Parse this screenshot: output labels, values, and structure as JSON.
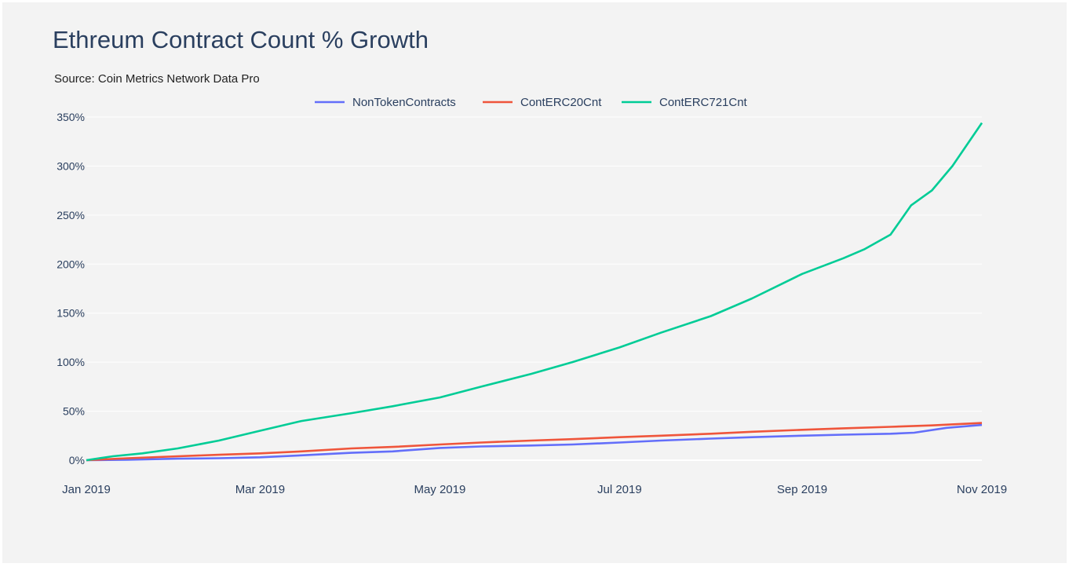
{
  "title": "Ethreum Contract Count % Growth",
  "subtitle": "Source: Coin Metrics Network Data Pro",
  "colors": {
    "background": "#f3f3f3",
    "grid": "#ffffff",
    "axis_text": "#2a3f5f",
    "NonTokenContracts": "#636efa",
    "ContERC20Cnt": "#ef553b",
    "ContERC721Cnt": "#00cc96"
  },
  "chart_data": {
    "type": "line",
    "title": "Ethreum Contract Count % Growth",
    "subtitle": "Source: Coin Metrics Network Data Pro",
    "xlabel": "",
    "ylabel": "",
    "x_ticks": [
      "2019-01-01",
      "2019-03-01",
      "2019-05-01",
      "2019-07-01",
      "2019-09-01",
      "2019-11-01"
    ],
    "x_tick_labels": [
      "Jan 2019",
      "Mar 2019",
      "May 2019",
      "Jul 2019",
      "Sep 2019",
      "Nov 2019"
    ],
    "xlim": [
      "2019-01-01",
      "2019-11-01"
    ],
    "y_ticks": [
      0,
      50,
      100,
      150,
      200,
      250,
      300,
      350
    ],
    "y_tick_labels": [
      "0%",
      "50%",
      "100%",
      "150%",
      "200%",
      "250%",
      "300%",
      "350%"
    ],
    "ylim": [
      0,
      350
    ],
    "grid": true,
    "legend_position": "top-center",
    "series": [
      {
        "name": "NonTokenContracts",
        "points": [
          [
            "2019-01-01",
            0
          ],
          [
            "2019-01-15",
            0.5
          ],
          [
            "2019-02-01",
            1.5
          ],
          [
            "2019-02-15",
            2
          ],
          [
            "2019-03-01",
            3
          ],
          [
            "2019-03-15",
            5
          ],
          [
            "2019-04-01",
            7.5
          ],
          [
            "2019-04-15",
            9
          ],
          [
            "2019-05-01",
            12.5
          ],
          [
            "2019-05-15",
            14
          ],
          [
            "2019-06-01",
            15
          ],
          [
            "2019-06-15",
            16
          ],
          [
            "2019-07-01",
            18
          ],
          [
            "2019-07-15",
            20
          ],
          [
            "2019-08-01",
            22
          ],
          [
            "2019-08-15",
            23.5
          ],
          [
            "2019-09-01",
            25
          ],
          [
            "2019-09-15",
            26
          ],
          [
            "2019-10-01",
            27
          ],
          [
            "2019-10-09",
            28
          ],
          [
            "2019-10-20",
            33
          ],
          [
            "2019-11-01",
            36
          ]
        ]
      },
      {
        "name": "ContERC20Cnt",
        "points": [
          [
            "2019-01-01",
            0
          ],
          [
            "2019-01-15",
            2
          ],
          [
            "2019-02-01",
            4
          ],
          [
            "2019-02-15",
            5.5
          ],
          [
            "2019-03-01",
            7
          ],
          [
            "2019-03-15",
            9
          ],
          [
            "2019-04-01",
            12
          ],
          [
            "2019-04-15",
            13.5
          ],
          [
            "2019-05-01",
            16
          ],
          [
            "2019-05-15",
            18
          ],
          [
            "2019-06-01",
            20
          ],
          [
            "2019-06-15",
            21.5
          ],
          [
            "2019-07-01",
            23.5
          ],
          [
            "2019-07-15",
            25
          ],
          [
            "2019-08-01",
            27
          ],
          [
            "2019-08-15",
            29
          ],
          [
            "2019-09-01",
            31
          ],
          [
            "2019-09-15",
            32.5
          ],
          [
            "2019-10-01",
            34
          ],
          [
            "2019-10-15",
            35.5
          ],
          [
            "2019-11-01",
            38
          ]
        ]
      },
      {
        "name": "ContERC721Cnt",
        "points": [
          [
            "2019-01-01",
            0
          ],
          [
            "2019-01-10",
            4
          ],
          [
            "2019-01-20",
            7
          ],
          [
            "2019-02-01",
            12
          ],
          [
            "2019-02-15",
            20
          ],
          [
            "2019-03-01",
            30
          ],
          [
            "2019-03-15",
            40
          ],
          [
            "2019-04-01",
            48
          ],
          [
            "2019-04-15",
            55
          ],
          [
            "2019-05-01",
            64
          ],
          [
            "2019-05-15",
            75
          ],
          [
            "2019-06-01",
            88
          ],
          [
            "2019-06-15",
            100
          ],
          [
            "2019-07-01",
            115
          ],
          [
            "2019-07-15",
            130
          ],
          [
            "2019-08-01",
            147
          ],
          [
            "2019-08-15",
            165
          ],
          [
            "2019-09-01",
            190
          ],
          [
            "2019-09-15",
            206
          ],
          [
            "2019-09-22",
            215
          ],
          [
            "2019-10-01",
            230
          ],
          [
            "2019-10-08",
            260
          ],
          [
            "2019-10-15",
            275
          ],
          [
            "2019-10-22",
            300
          ],
          [
            "2019-11-01",
            344
          ]
        ]
      }
    ]
  }
}
